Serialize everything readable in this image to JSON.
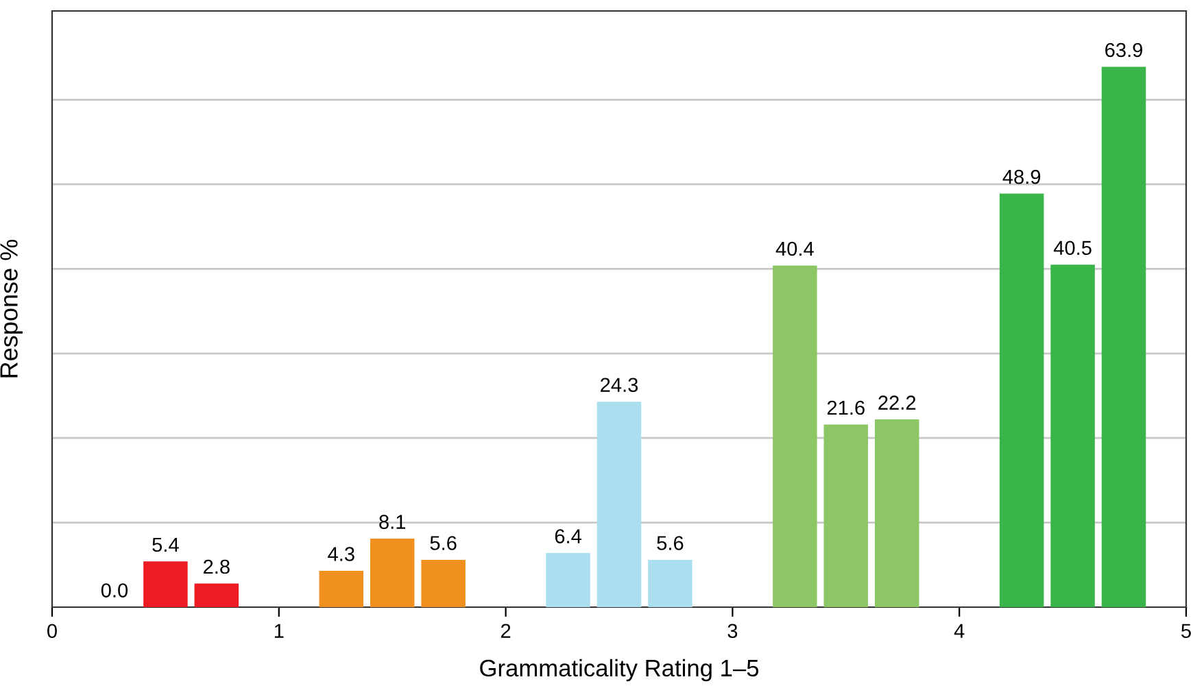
{
  "chart_data": {
    "type": "bar",
    "xlabel": "Grammaticality Rating 1–5",
    "ylabel": "Response %",
    "x": [
      0.275,
      0.5,
      0.725,
      1.275,
      1.5,
      1.725,
      2.275,
      2.5,
      2.725,
      3.275,
      3.5,
      3.725,
      4.275,
      4.5,
      4.725
    ],
    "values": [
      0.0,
      5.4,
      2.8,
      4.3,
      8.1,
      5.6,
      6.4,
      24.3,
      5.6,
      40.4,
      21.6,
      22.2,
      48.9,
      40.5,
      63.9
    ],
    "value_labels": [
      "0.0",
      "5.4",
      "2.8",
      "4.3",
      "8.1",
      "5.6",
      "6.4",
      "24.3",
      "5.6",
      "40.4",
      "21.6",
      "22.2",
      "48.9",
      "40.5",
      "63.9"
    ],
    "colors": [
      "#ed1c24",
      "#ed1c24",
      "#ed1c24",
      "#f0901e",
      "#f0901e",
      "#f0901e",
      "#abdff0",
      "#abdff0",
      "#abdff0",
      "#8cc665",
      "#8cc665",
      "#8cc665",
      "#3ab54a",
      "#3ab54a",
      "#3ab54a"
    ],
    "xlim": [
      0,
      5
    ],
    "xticks": [
      0,
      1,
      2,
      3,
      4,
      5
    ],
    "ylim": [
      0,
      70.5
    ],
    "yticks": [
      {
        "value": 10,
        "label": null
      },
      {
        "value": 20,
        "label": null
      },
      {
        "value": 30,
        "label": null
      },
      {
        "value": 40,
        "label": null
      },
      {
        "value": 50,
        "label": null
      },
      {
        "value": 60,
        "label": null
      }
    ],
    "grid": "y",
    "tick_labels": "x"
  }
}
